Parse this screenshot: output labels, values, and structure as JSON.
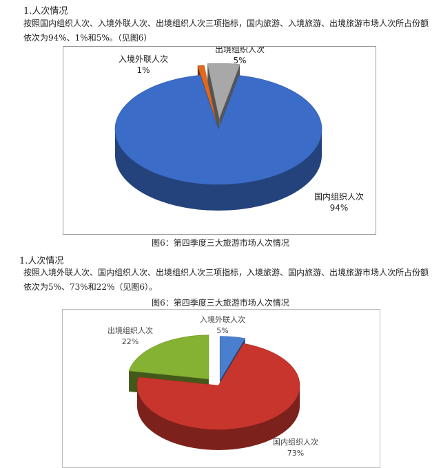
{
  "section1": {
    "heading": "1.人次情况",
    "paragraph": "按照国内组织人次、入境外联人次、出境组织人次三项指标，国内旅游、入境旅游、出境旅游市场人次所占份额依次为94%、1%和5%。（见图6）",
    "caption": "图6：第四季度三大旅游市场人次情况"
  },
  "section2": {
    "heading": "1.人次情况",
    "paragraph": "按照入境外联人次、国内组织人次、出境组织人次三项指标，入境旅游、国内旅游、出境旅游市场人次所占份额依次为5%、73%和22%（见图6）。",
    "caption": "图6：第四季度三大旅游市场人次情况"
  },
  "chart_data": [
    {
      "type": "pie",
      "title": "",
      "slices": [
        {
          "name": "国内组织人次",
          "value": 94,
          "label": "94%",
          "color": "#3a6cc8"
        },
        {
          "name": "入境外联人次",
          "value": 1,
          "label": "1%",
          "color": "#e2691d"
        },
        {
          "name": "出境组织人次",
          "value": 5,
          "label": "5%",
          "color": "#a8a8a8"
        }
      ]
    },
    {
      "type": "pie",
      "title": "",
      "slices": [
        {
          "name": "入境外联人次",
          "value": 5,
          "label": "5%",
          "color": "#4a7fd0"
        },
        {
          "name": "国内组织人次",
          "value": 73,
          "label": "73%",
          "color": "#c8352c"
        },
        {
          "name": "出境组织人次",
          "value": 22,
          "label": "22%",
          "color": "#86b233"
        }
      ]
    }
  ]
}
